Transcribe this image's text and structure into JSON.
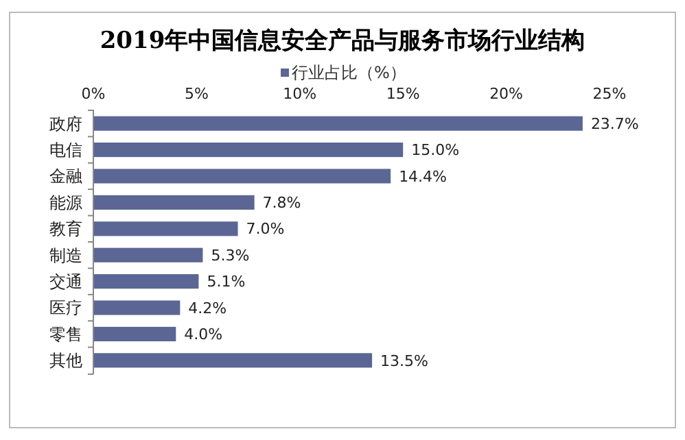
{
  "chart_data": {
    "type": "bar",
    "orientation": "horizontal",
    "title": "2019年中国信息安全产品与服务市场行业结构",
    "categories": [
      "政府",
      "电信",
      "金融",
      "能源",
      "教育",
      "制造",
      "交通",
      "医疗",
      "零售",
      "其他"
    ],
    "series": [
      {
        "name": "行业占比（%）",
        "color": "#5b6694",
        "values": [
          23.7,
          15.0,
          14.4,
          7.8,
          7.0,
          5.3,
          5.1,
          4.2,
          4.0,
          13.5
        ]
      }
    ],
    "value_labels": [
      "23.7%",
      "15.0%",
      "14.4%",
      "7.8%",
      "7.0%",
      "5.3%",
      "5.1%",
      "4.2%",
      "4.0%",
      "13.5%"
    ],
    "xlim": [
      0,
      25
    ],
    "xticks": [
      {
        "value": 0,
        "label": "0%"
      },
      {
        "value": 5,
        "label": "5%"
      },
      {
        "value": 10,
        "label": "10%"
      },
      {
        "value": 15,
        "label": "15%"
      },
      {
        "value": 20,
        "label": "20%"
      },
      {
        "value": 25,
        "label": "25%"
      }
    ],
    "legend": "top",
    "grid": false
  }
}
